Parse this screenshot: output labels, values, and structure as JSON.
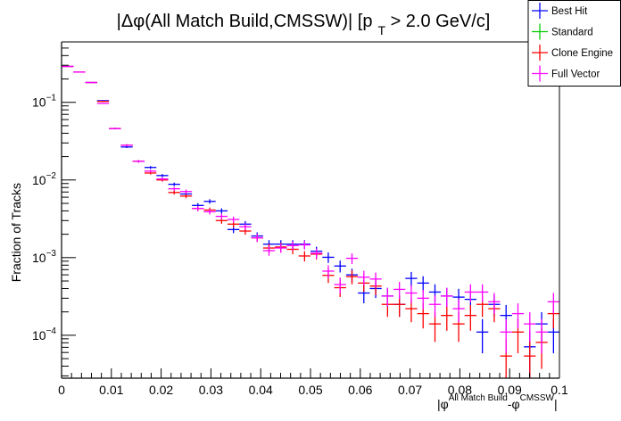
{
  "chart_data": {
    "type": "scatter",
    "style": "histogram-with-error-bars",
    "title": {
      "main": "|Δφ(All Match Build,CMSSW)| [p",
      "subscript": "T",
      "rest": " > 2.0 GeV/c]"
    },
    "xlabel": {
      "prefix": "|φ",
      "sup1": "All Match Build",
      "mid": "-φ",
      "sup2": "CMSSW",
      "suffix": "|"
    },
    "ylabel": "Fraction of Tracks",
    "xlim": [
      0,
      0.1
    ],
    "ylim": [
      2.8e-05,
      0.6
    ],
    "yscale": "log",
    "grid": false,
    "legend_position": "top-right",
    "x_ticks": [
      {
        "value": 0,
        "label": "0"
      },
      {
        "value": 0.01,
        "label": "0.01"
      },
      {
        "value": 0.02,
        "label": "0.02"
      },
      {
        "value": 0.03,
        "label": "0.03"
      },
      {
        "value": 0.04,
        "label": "0.04"
      },
      {
        "value": 0.05,
        "label": "0.05"
      },
      {
        "value": 0.06,
        "label": "0.06"
      },
      {
        "value": 0.07,
        "label": "0.07"
      },
      {
        "value": 0.08,
        "label": "0.08"
      },
      {
        "value": 0.09,
        "label": "0.09"
      },
      {
        "value": 0.1,
        "label": "0.1"
      }
    ],
    "y_ticks": [
      {
        "value": 0.1,
        "base": "10",
        "exp": "−1"
      },
      {
        "value": 0.01,
        "base": "10",
        "exp": "−2"
      },
      {
        "value": 0.001,
        "base": "10",
        "exp": "−3"
      },
      {
        "value": 0.0001,
        "base": "10",
        "exp": "−4"
      }
    ],
    "n_bins": 42,
    "error_model": {
      "relative_error_constant": 2.4e-05
    },
    "series": [
      {
        "name": "Best Hit",
        "color": "#0000ff",
        "values": [
          0.29,
          0.245,
          0.18,
          0.105,
          0.046,
          0.0266,
          0.0174,
          0.0145,
          0.0114,
          0.0088,
          0.0066,
          0.0047,
          0.0053,
          0.004,
          0.0023,
          0.0027,
          0.0019,
          0.00149,
          0.00149,
          0.00149,
          0.00149,
          0.00121,
          0.00101,
          0.00078,
          0.0006,
          0.00035,
          0.0004,
          0.00032,
          0.00025,
          0.00054,
          0.00047,
          0.00036,
          0.00032,
          0.00031,
          0.00029,
          0.00011,
          0.00025,
          0.00018,
          null,
          7.1e-05,
          0.00014,
          0.00011
        ]
      },
      {
        "name": "Standard",
        "color": "#00cc00",
        "values": []
      },
      {
        "name": "Clone Engine",
        "color": "#ff0000",
        "values": [
          0.29,
          0.245,
          0.18,
          0.103,
          0.046,
          0.028,
          0.0174,
          0.0123,
          0.01,
          0.0069,
          0.0062,
          0.0043,
          0.0041,
          0.003,
          0.0027,
          0.0022,
          0.0018,
          0.00133,
          0.00137,
          0.00128,
          0.00105,
          0.00111,
          0.00059,
          0.00041,
          0.00057,
          0.00047,
          0.00043,
          0.00025,
          0.00025,
          0.00022,
          0.00019,
          0.00014,
          0.00018,
          0.00014,
          0.00018,
          0.00025,
          0.00022,
          5.4e-05,
          0.00011,
          5.4e-05,
          8.1e-05,
          0.00019
        ]
      },
      {
        "name": "Full Vector",
        "color": "#ff00ff",
        "values": [
          0.29,
          0.245,
          0.18,
          0.097,
          0.046,
          0.028,
          0.0174,
          0.013,
          0.0103,
          0.0077,
          0.0071,
          0.0043,
          0.0039,
          0.0034,
          0.0031,
          0.0025,
          0.0018,
          0.00123,
          0.00133,
          0.00143,
          0.00146,
          0.00114,
          0.00067,
          0.00045,
          0.00098,
          0.00056,
          0.00053,
          0.00032,
          0.00039,
          0.00035,
          0.0003,
          0.00025,
          0.00032,
          0.00022,
          0.00036,
          0.00036,
          0.00027,
          0.00011,
          0.00019,
          0.00014,
          0.00011,
          0.00027
        ]
      }
    ]
  }
}
